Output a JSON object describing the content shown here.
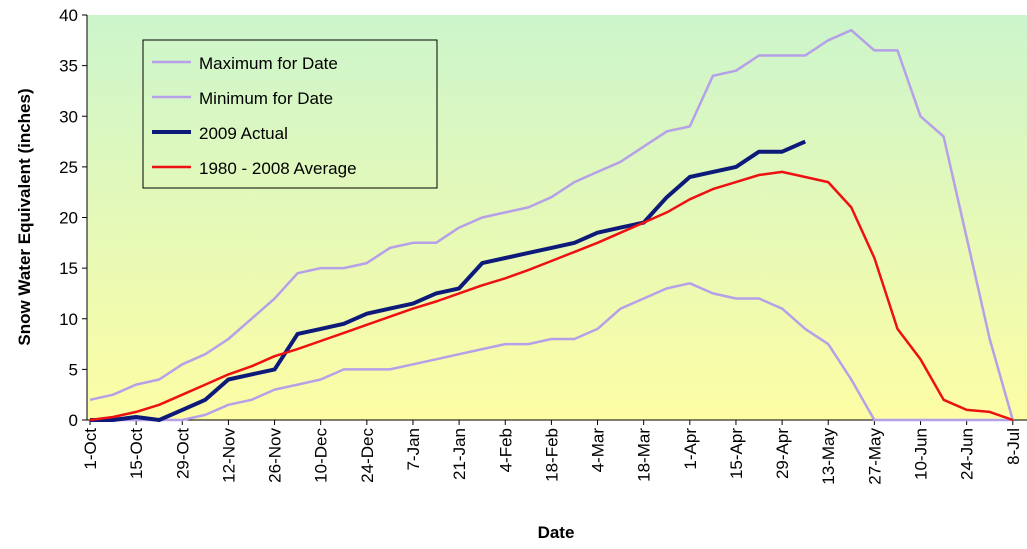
{
  "chart_data": {
    "type": "line",
    "x_label": "Date",
    "y_label": "Snow Water Equivalent (inches)",
    "categories": [
      "1-Oct",
      null,
      "15-Oct",
      null,
      "29-Oct",
      null,
      "12-Nov",
      null,
      "26-Nov",
      null,
      "10-Dec",
      null,
      "24-Dec",
      null,
      "7-Jan",
      null,
      "21-Jan",
      null,
      "4-Feb",
      null,
      "18-Feb",
      null,
      "4-Mar",
      null,
      "18-Mar",
      null,
      "1-Apr",
      null,
      "15-Apr",
      null,
      "29-Apr",
      null,
      "13-May",
      null,
      "27-May",
      null,
      "10-Jun",
      null,
      "24-Jun",
      null,
      "8-Jul"
    ],
    "series": [
      {
        "name": "Maximum for Date",
        "color": "#b6a0e8",
        "width": 2.5,
        "values": [
          2,
          2.5,
          3.5,
          4,
          5.5,
          6.5,
          8,
          10,
          12,
          14.5,
          15,
          15,
          15.5,
          17,
          17.5,
          17.5,
          19,
          20,
          20.5,
          21,
          22,
          23.5,
          24.5,
          25.5,
          27,
          28.5,
          29,
          34,
          34.5,
          36,
          36,
          36,
          37.5,
          38.5,
          36.5,
          36.5,
          30,
          28,
          18,
          8,
          0
        ]
      },
      {
        "name": "Minimum for Date",
        "color": "#b6a0e8",
        "width": 2.5,
        "values": [
          0,
          0,
          0,
          0,
          0,
          0.5,
          1.5,
          2,
          3,
          3.5,
          4,
          5,
          5,
          5,
          5.5,
          6,
          6.5,
          7,
          7.5,
          7.5,
          8,
          8,
          9,
          11,
          12,
          13,
          13.5,
          12.5,
          12,
          12,
          11,
          9,
          7.5,
          4,
          0,
          0,
          0,
          0,
          0,
          0,
          0
        ]
      },
      {
        "name": "2009 Actual",
        "color": "#0d1a7a",
        "width": 4,
        "values": [
          0,
          0,
          0.3,
          0,
          1,
          2,
          4,
          4.5,
          5,
          8.5,
          9,
          9.5,
          10.5,
          11,
          11.5,
          12.5,
          13,
          15.5,
          16,
          16.5,
          17,
          17.5,
          18.5,
          19,
          19.5,
          22,
          24,
          24.5,
          25,
          26.5,
          26.5,
          27.5,
          null,
          null,
          null,
          null,
          null,
          null,
          null,
          null,
          null
        ]
      },
      {
        "name": "1980 - 2008 Average",
        "color": "#ee1111",
        "width": 2.5,
        "values": [
          0,
          0.3,
          0.8,
          1.5,
          2.5,
          3.5,
          4.5,
          5.3,
          6.3,
          7,
          7.8,
          8.6,
          9.4,
          10.2,
          11,
          11.7,
          12.5,
          13.3,
          14,
          14.8,
          15.7,
          16.6,
          17.5,
          18.5,
          19.5,
          20.5,
          21.8,
          22.8,
          23.5,
          24.2,
          24.5,
          24,
          23.5,
          21,
          16,
          9,
          6,
          2,
          1,
          0.8,
          0
        ]
      }
    ],
    "ylim": [
      0,
      40
    ],
    "yticks": [
      0,
      5,
      10,
      15,
      20,
      25,
      30,
      35,
      40
    ],
    "legend": "upper left"
  }
}
